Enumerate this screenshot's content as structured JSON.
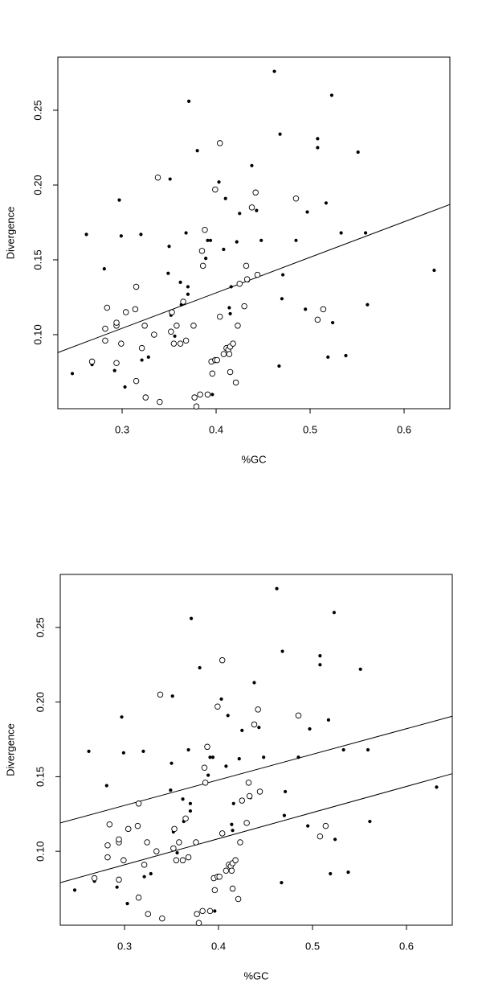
{
  "chart_data": [
    {
      "type": "scatter",
      "xlabel": "%GC",
      "ylabel": "Divergence",
      "xlim": [
        0.2316,
        0.6487
      ],
      "ylim": [
        0.0505,
        0.2855
      ],
      "xticks": [
        0.3,
        0.4,
        0.5,
        0.6
      ],
      "yticks": [
        {
          "value": 0.1,
          "label": "0.10"
        },
        0.15,
        {
          "value": 0.2,
          "label": "0.20"
        },
        0.25
      ],
      "series": [
        {
          "marker": "filled",
          "color": "#000000",
          "x": [
            0.247,
            0.262,
            0.268,
            0.281,
            0.292,
            0.297,
            0.299,
            0.303,
            0.32,
            0.321,
            0.328,
            0.35,
            0.349,
            0.351,
            0.352,
            0.356,
            0.362,
            0.363,
            0.371,
            0.368,
            0.37,
            0.37,
            0.38,
            0.375,
            0.389,
            0.391,
            0.394,
            0.396,
            0.403,
            0.408,
            0.41,
            0.414,
            0.415,
            0.416,
            0.422,
            0.425,
            0.434,
            0.438,
            0.443,
            0.448,
            0.462,
            0.468,
            0.47,
            0.467,
            0.471,
            0.485,
            0.495,
            0.497,
            0.508,
            0.508,
            0.517,
            0.519,
            0.524,
            0.538,
            0.533,
            0.551,
            0.559,
            0.561,
            0.523,
            0.632
          ],
          "values": [
            0.074,
            0.167,
            0.08,
            0.144,
            0.076,
            0.19,
            0.166,
            0.065,
            0.167,
            0.083,
            0.085,
            0.159,
            0.141,
            0.204,
            0.113,
            0.099,
            0.135,
            0.12,
            0.256,
            0.168,
            0.132,
            0.127,
            0.223,
            0.106,
            0.151,
            0.163,
            0.163,
            0.06,
            0.202,
            0.157,
            0.191,
            0.118,
            0.114,
            0.132,
            0.162,
            0.181,
            0.136,
            0.213,
            0.183,
            0.163,
            0.276,
            0.234,
            0.124,
            0.079,
            0.14,
            0.163,
            0.117,
            0.182,
            0.231,
            0.225,
            0.188,
            0.085,
            0.108,
            0.086,
            0.168,
            0.222,
            0.168,
            0.12,
            0.26,
            0.143
          ]
        },
        {
          "marker": "open",
          "color": "#000000",
          "x": [
            0.268,
            0.284,
            0.282,
            0.282,
            0.294,
            0.294,
            0.294,
            0.299,
            0.304,
            0.314,
            0.315,
            0.315,
            0.321,
            0.324,
            0.325,
            0.334,
            0.338,
            0.34,
            0.352,
            0.353,
            0.355,
            0.358,
            0.362,
            0.365,
            0.368,
            0.376,
            0.377,
            0.379,
            0.383,
            0.385,
            0.386,
            0.388,
            0.391,
            0.395,
            0.396,
            0.399,
            0.399,
            0.401,
            0.404,
            0.404,
            0.408,
            0.411,
            0.413,
            0.414,
            0.415,
            0.415,
            0.418,
            0.421,
            0.423,
            0.425,
            0.43,
            0.432,
            0.433,
            0.438,
            0.442,
            0.444,
            0.485,
            0.514,
            0.508
          ],
          "values": [
            0.082,
            0.118,
            0.104,
            0.096,
            0.106,
            0.108,
            0.081,
            0.094,
            0.115,
            0.117,
            0.132,
            0.069,
            0.091,
            0.106,
            0.058,
            0.1,
            0.205,
            0.055,
            0.102,
            0.115,
            0.094,
            0.106,
            0.094,
            0.122,
            0.096,
            0.106,
            0.058,
            0.052,
            0.06,
            0.156,
            0.146,
            0.17,
            0.06,
            0.082,
            0.074,
            0.083,
            0.197,
            0.083,
            0.112,
            0.228,
            0.087,
            0.091,
            0.09,
            0.087,
            0.092,
            0.075,
            0.094,
            0.068,
            0.106,
            0.134,
            0.119,
            0.146,
            0.137,
            0.185,
            0.195,
            0.14,
            0.191,
            0.117,
            0.11
          ]
        }
      ],
      "lines": [
        {
          "x": [
            0.2316,
            0.6487
          ],
          "values": [
            0.088,
            0.187
          ]
        }
      ]
    },
    {
      "type": "scatter",
      "xlabel": "%GC",
      "ylabel": "Divergence",
      "xlim": [
        0.2316,
        0.6487
      ],
      "ylim": [
        0.0505,
        0.2855
      ],
      "xticks": [
        0.3,
        0.4,
        0.5,
        0.6
      ],
      "yticks": [
        {
          "value": 0.1,
          "label": "0.10"
        },
        0.15,
        {
          "value": 0.2,
          "label": "0.20"
        },
        0.25
      ],
      "series": [
        {
          "marker": "filled",
          "color": "#000000",
          "x": [
            0.247,
            0.262,
            0.268,
            0.281,
            0.292,
            0.297,
            0.299,
            0.303,
            0.32,
            0.321,
            0.328,
            0.35,
            0.349,
            0.351,
            0.352,
            0.356,
            0.362,
            0.363,
            0.371,
            0.368,
            0.37,
            0.37,
            0.38,
            0.375,
            0.389,
            0.391,
            0.394,
            0.396,
            0.403,
            0.408,
            0.41,
            0.414,
            0.415,
            0.416,
            0.422,
            0.425,
            0.434,
            0.438,
            0.443,
            0.448,
            0.462,
            0.468,
            0.47,
            0.467,
            0.471,
            0.485,
            0.495,
            0.497,
            0.508,
            0.508,
            0.517,
            0.519,
            0.524,
            0.538,
            0.533,
            0.551,
            0.559,
            0.561,
            0.523,
            0.632
          ],
          "values": [
            0.074,
            0.167,
            0.08,
            0.144,
            0.076,
            0.19,
            0.166,
            0.065,
            0.167,
            0.083,
            0.085,
            0.159,
            0.141,
            0.204,
            0.113,
            0.099,
            0.135,
            0.12,
            0.256,
            0.168,
            0.132,
            0.127,
            0.223,
            0.106,
            0.151,
            0.163,
            0.163,
            0.06,
            0.202,
            0.157,
            0.191,
            0.118,
            0.114,
            0.132,
            0.162,
            0.181,
            0.136,
            0.213,
            0.183,
            0.163,
            0.276,
            0.234,
            0.124,
            0.079,
            0.14,
            0.163,
            0.117,
            0.182,
            0.231,
            0.225,
            0.188,
            0.085,
            0.108,
            0.086,
            0.168,
            0.222,
            0.168,
            0.12,
            0.26,
            0.143
          ]
        },
        {
          "marker": "open",
          "color": "#000000",
          "x": [
            0.268,
            0.284,
            0.282,
            0.282,
            0.294,
            0.294,
            0.294,
            0.299,
            0.304,
            0.314,
            0.315,
            0.315,
            0.321,
            0.324,
            0.325,
            0.334,
            0.338,
            0.34,
            0.352,
            0.353,
            0.355,
            0.358,
            0.362,
            0.365,
            0.368,
            0.376,
            0.377,
            0.379,
            0.383,
            0.385,
            0.386,
            0.388,
            0.391,
            0.395,
            0.396,
            0.399,
            0.399,
            0.401,
            0.404,
            0.404,
            0.408,
            0.411,
            0.413,
            0.414,
            0.415,
            0.415,
            0.418,
            0.421,
            0.423,
            0.425,
            0.43,
            0.432,
            0.433,
            0.438,
            0.442,
            0.444,
            0.485,
            0.514,
            0.508
          ],
          "values": [
            0.082,
            0.118,
            0.104,
            0.096,
            0.106,
            0.108,
            0.081,
            0.094,
            0.115,
            0.117,
            0.132,
            0.069,
            0.091,
            0.106,
            0.058,
            0.1,
            0.205,
            0.055,
            0.102,
            0.115,
            0.094,
            0.106,
            0.094,
            0.122,
            0.096,
            0.106,
            0.058,
            0.052,
            0.06,
            0.156,
            0.146,
            0.17,
            0.06,
            0.082,
            0.074,
            0.083,
            0.197,
            0.083,
            0.112,
            0.228,
            0.087,
            0.091,
            0.09,
            0.087,
            0.092,
            0.075,
            0.094,
            0.068,
            0.106,
            0.134,
            0.119,
            0.146,
            0.137,
            0.185,
            0.195,
            0.14,
            0.191,
            0.117,
            0.11
          ]
        }
      ],
      "lines": [
        {
          "x": [
            0.2316,
            0.6487
          ],
          "values": [
            0.119,
            0.1905
          ]
        },
        {
          "x": [
            0.2316,
            0.6487
          ],
          "values": [
            0.079,
            0.152
          ]
        }
      ]
    }
  ]
}
